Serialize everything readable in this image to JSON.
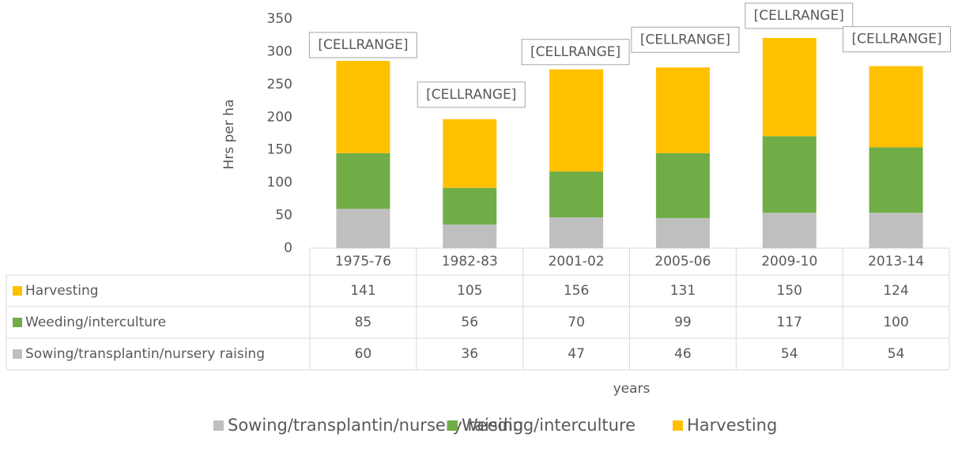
{
  "chart_data": {
    "type": "bar",
    "stacked": true,
    "y_label": "Hrs per ha",
    "x_label": "years",
    "categories": [
      "1975-76",
      "1982-83",
      "2001-02",
      "2005-06",
      "2009-10",
      "2013-14"
    ],
    "series": [
      {
        "name": "Sowing/transplantin/nursery raising",
        "color": "#bfbfbf",
        "values": [
          60,
          36,
          47,
          46,
          54,
          54
        ]
      },
      {
        "name": "Weeding/interculture",
        "color": "#70ad47",
        "values": [
          85,
          56,
          70,
          99,
          117,
          100
        ]
      },
      {
        "name": "Harvesting",
        "color": "#ffc000",
        "values": [
          141,
          105,
          156,
          131,
          150,
          124
        ]
      }
    ],
    "data_labels": [
      "[CELLRANGE]",
      "[CELLRANGE]",
      "[CELLRANGE]",
      "[CELLRANGE]",
      "[CELLRANGE]",
      "[CELLRANGE]"
    ],
    "ylim": [
      0,
      350
    ],
    "yticks": [
      0,
      50,
      100,
      150,
      200,
      250,
      300,
      350
    ],
    "grid": false
  }
}
